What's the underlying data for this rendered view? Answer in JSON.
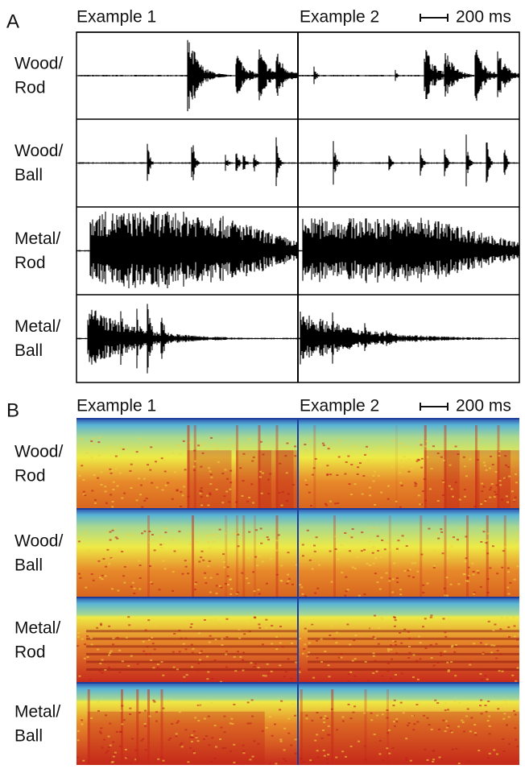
{
  "panels": [
    {
      "label": "A",
      "columns": [
        "Example 1",
        "Example 2"
      ],
      "scale_bar": "200 ms",
      "rows": [
        {
          "material": "Wood/",
          "object": "Rod"
        },
        {
          "material": "Wood/",
          "object": "Ball"
        },
        {
          "material": "Metal/",
          "object": "Rod"
        },
        {
          "material": "Metal/",
          "object": "Ball"
        }
      ]
    },
    {
      "label": "B",
      "columns": [
        "Example 1",
        "Example 2"
      ],
      "scale_bar": "200 ms",
      "rows": [
        {
          "material": "Wood/",
          "object": "Rod"
        },
        {
          "material": "Wood/",
          "object": "Ball"
        },
        {
          "material": "Metal/",
          "object": "Rod"
        },
        {
          "material": "Metal/",
          "object": "Ball"
        }
      ]
    }
  ]
}
